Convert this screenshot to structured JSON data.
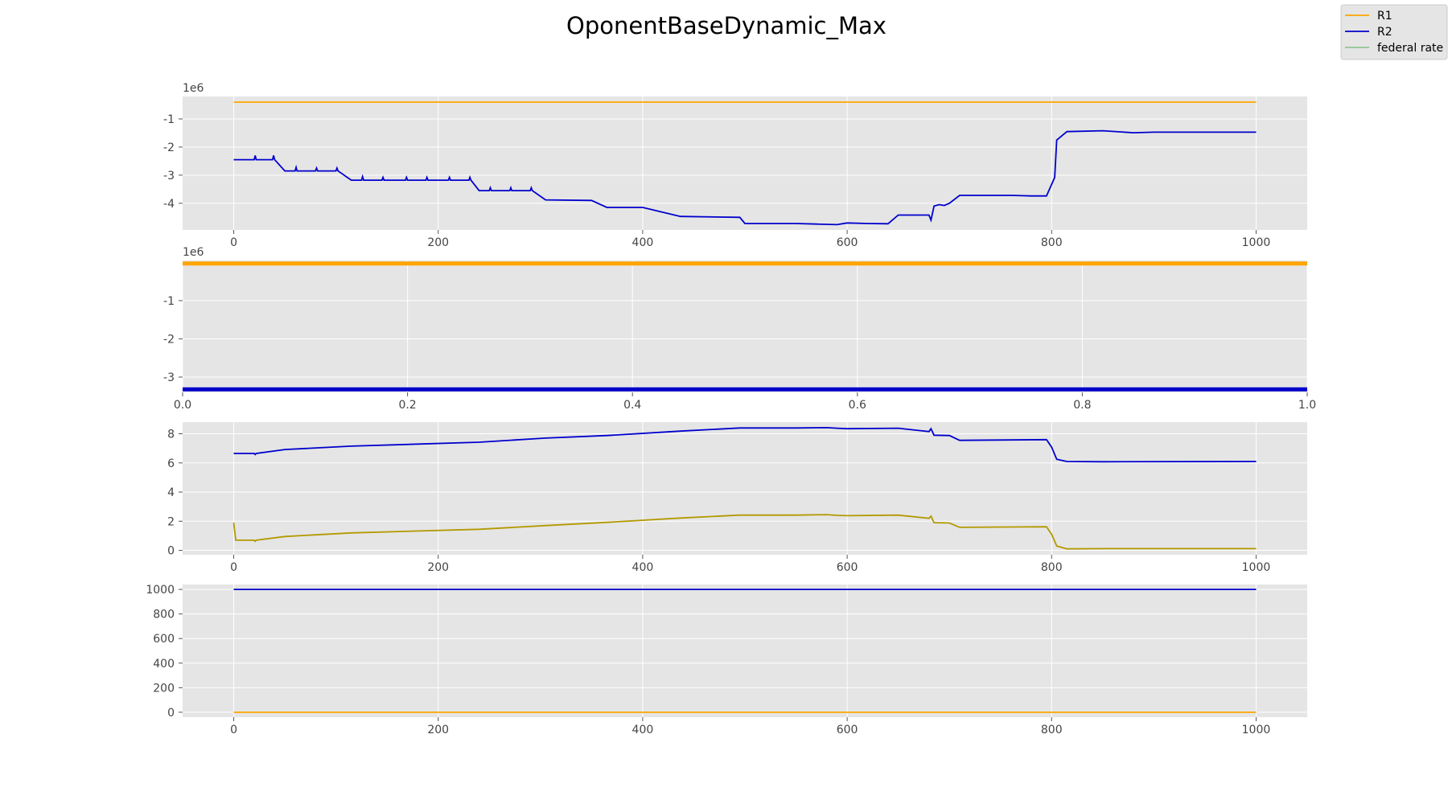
{
  "figure": {
    "title": "OponentBaseDynamic_Max"
  },
  "legend": {
    "position": "top-right",
    "entries": [
      {
        "label": "R1",
        "color": "#ffa500"
      },
      {
        "label": "R2",
        "color": "#0000cd"
      },
      {
        "label": "federal rate",
        "color": "#90c690"
      }
    ]
  },
  "style": {
    "background": "#e5e5e5",
    "grid": "#ffffff",
    "tick_color": "#555555",
    "r1_color": "#ffa500",
    "r2_color": "#0000cd",
    "diff_color": "#b39900"
  },
  "chart_data": [
    {
      "type": "line",
      "title": "",
      "xlim": [
        -50,
        1050
      ],
      "ylim": [
        -4.95,
        -0.2
      ],
      "xticks": [
        "0",
        "200",
        "400",
        "600",
        "800",
        "1000"
      ],
      "yticks": [
        "-1",
        "-2",
        "-3",
        "-4"
      ],
      "offset_label": "1e6",
      "grid": true,
      "series": [
        {
          "name": "R1",
          "color": "#ffa500",
          "x": [
            0,
            1000
          ],
          "y": [
            -0.4,
            -0.4
          ]
        },
        {
          "name": "R2",
          "color": "#0000cd",
          "x": [
            0,
            20,
            21,
            22,
            38,
            39,
            40,
            50,
            60,
            61,
            62,
            80,
            81,
            82,
            100,
            101,
            102,
            115,
            125,
            126,
            127,
            145,
            146,
            147,
            168,
            169,
            170,
            188,
            189,
            190,
            210,
            211,
            212,
            230,
            231,
            232,
            240,
            250,
            251,
            252,
            270,
            271,
            272,
            290,
            291,
            292,
            305,
            350,
            365,
            400,
            437,
            495,
            500,
            550,
            570,
            590,
            600,
            620,
            640,
            650,
            680,
            682,
            685,
            690,
            695,
            700,
            710,
            760,
            780,
            795,
            803,
            805,
            815,
            850,
            880,
            900,
            1000
          ],
          "y": [
            -2.45,
            -2.45,
            -2.3,
            -2.45,
            -2.45,
            -2.3,
            -2.45,
            -2.85,
            -2.85,
            -2.72,
            -2.85,
            -2.85,
            -2.75,
            -2.85,
            -2.85,
            -2.75,
            -2.85,
            -3.18,
            -3.18,
            -3.05,
            -3.18,
            -3.18,
            -3.08,
            -3.18,
            -3.18,
            -3.08,
            -3.18,
            -3.18,
            -3.08,
            -3.18,
            -3.18,
            -3.08,
            -3.18,
            -3.18,
            -3.08,
            -3.18,
            -3.55,
            -3.55,
            -3.45,
            -3.55,
            -3.55,
            -3.45,
            -3.55,
            -3.55,
            -3.45,
            -3.55,
            -3.88,
            -3.9,
            -4.15,
            -4.15,
            -4.47,
            -4.5,
            -4.72,
            -4.72,
            -4.74,
            -4.76,
            -4.7,
            -4.72,
            -4.73,
            -4.42,
            -4.42,
            -4.6,
            -4.1,
            -4.05,
            -4.08,
            -4.0,
            -3.72,
            -3.72,
            -3.74,
            -3.74,
            -3.08,
            -1.75,
            -1.45,
            -1.42,
            -1.49,
            -1.47,
            -1.47
          ]
        }
      ]
    },
    {
      "type": "line",
      "title": "",
      "xlim": [
        0.0,
        1.0
      ],
      "ylim": [
        -3.4,
        0.05
      ],
      "xticks": [
        "0.0",
        "0.2",
        "0.4",
        "0.6",
        "0.8",
        "1.0"
      ],
      "yticks": [
        "-1",
        "-2",
        "-3"
      ],
      "offset_label": "1e6",
      "grid": true,
      "series": [
        {
          "name": "R1",
          "color": "#ffa500",
          "x": [
            0.0,
            1.0
          ],
          "y": [
            -0.03,
            -0.03
          ]
        },
        {
          "name": "R2",
          "color": "#0000cd",
          "x": [
            0.0,
            1.0
          ],
          "y": [
            -3.32,
            -3.32
          ]
        }
      ]
    },
    {
      "type": "line",
      "title": "",
      "xlim": [
        -50,
        1050
      ],
      "ylim": [
        -0.3,
        8.8
      ],
      "xticks": [
        "0",
        "200",
        "400",
        "600",
        "800",
        "1000"
      ],
      "yticks": [
        "0",
        "2",
        "4",
        "6",
        "8"
      ],
      "offset_label": "",
      "grid": true,
      "series": [
        {
          "name": "R2",
          "color": "#0000cd",
          "x": [
            0,
            20,
            21,
            22,
            50,
            115,
            240,
            305,
            365,
            437,
            495,
            550,
            580,
            590,
            600,
            650,
            680,
            682,
            685,
            700,
            710,
            795,
            800,
            805,
            815,
            850,
            1000
          ],
          "y": [
            6.65,
            6.65,
            6.58,
            6.65,
            6.92,
            7.15,
            7.42,
            7.7,
            7.88,
            8.18,
            8.4,
            8.4,
            8.42,
            8.38,
            8.35,
            8.38,
            8.15,
            8.35,
            7.9,
            7.88,
            7.55,
            7.6,
            7.08,
            6.25,
            6.1,
            6.08,
            6.1
          ]
        },
        {
          "name": "",
          "color": "#b39900",
          "x": [
            0,
            2,
            20,
            21,
            22,
            50,
            115,
            240,
            305,
            365,
            437,
            495,
            550,
            580,
            590,
            600,
            650,
            680,
            682,
            685,
            700,
            710,
            795,
            800,
            805,
            815,
            850,
            1000
          ],
          "y": [
            1.9,
            0.7,
            0.7,
            0.62,
            0.7,
            0.95,
            1.2,
            1.45,
            1.7,
            1.92,
            2.22,
            2.42,
            2.42,
            2.45,
            2.4,
            2.38,
            2.42,
            2.2,
            2.35,
            1.9,
            1.88,
            1.58,
            1.62,
            1.1,
            0.3,
            0.1,
            0.12,
            0.12
          ]
        }
      ]
    },
    {
      "type": "line",
      "title": "",
      "xlim": [
        -50,
        1050
      ],
      "ylim": [
        -40,
        1040
      ],
      "xticks": [
        "0",
        "200",
        "400",
        "600",
        "800",
        "1000"
      ],
      "yticks": [
        "0",
        "200",
        "400",
        "600",
        "800",
        "1000"
      ],
      "offset_label": "",
      "grid": true,
      "series": [
        {
          "name": "R1",
          "color": "#ffa500",
          "x": [
            0,
            1000
          ],
          "y": [
            0,
            0
          ]
        },
        {
          "name": "R2",
          "color": "#0000cd",
          "x": [
            0,
            1000
          ],
          "y": [
            1000,
            1000
          ]
        }
      ]
    }
  ]
}
